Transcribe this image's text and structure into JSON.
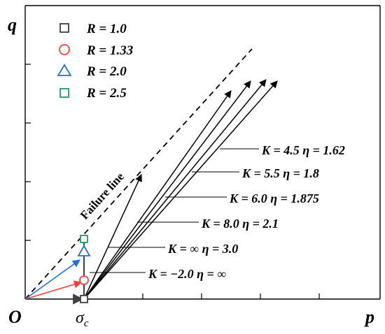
{
  "axes": {
    "y_label": "q",
    "x_label": "p",
    "origin_label": "O",
    "x_marker_label": "σ",
    "x_marker_subscript": "c"
  },
  "legend": [
    {
      "id": "r10",
      "label": "R = 1.0",
      "shape": "square",
      "color": "#404040"
    },
    {
      "id": "r133",
      "label": "R = 1.33",
      "shape": "circle",
      "color": "#ff3b3b"
    },
    {
      "id": "r20",
      "label": "R = 2.0",
      "shape": "triangle",
      "color": "#1f6fe0"
    },
    {
      "id": "r25",
      "label": "R = 2.5",
      "shape": "square",
      "color": "#1aa060"
    }
  ],
  "failure_line_label": "Failure line",
  "paths": [
    {
      "label": "K = 4.5  η = 1.62"
    },
    {
      "label": "K = 5.5  η = 1.8"
    },
    {
      "label": "K = 6.0  η = 1.875"
    },
    {
      "label": "K = 8.0  η = 2.1"
    },
    {
      "label": "K = ∞  η = 3.0"
    },
    {
      "label": "K = −2.0  η = ∞"
    }
  ],
  "colors": {
    "axis": "#000000",
    "black_arrow": "#000000",
    "red_arrow": "#ff3b3b",
    "blue_arrow": "#1f6fe0",
    "gray_arrow": "#404040"
  }
}
